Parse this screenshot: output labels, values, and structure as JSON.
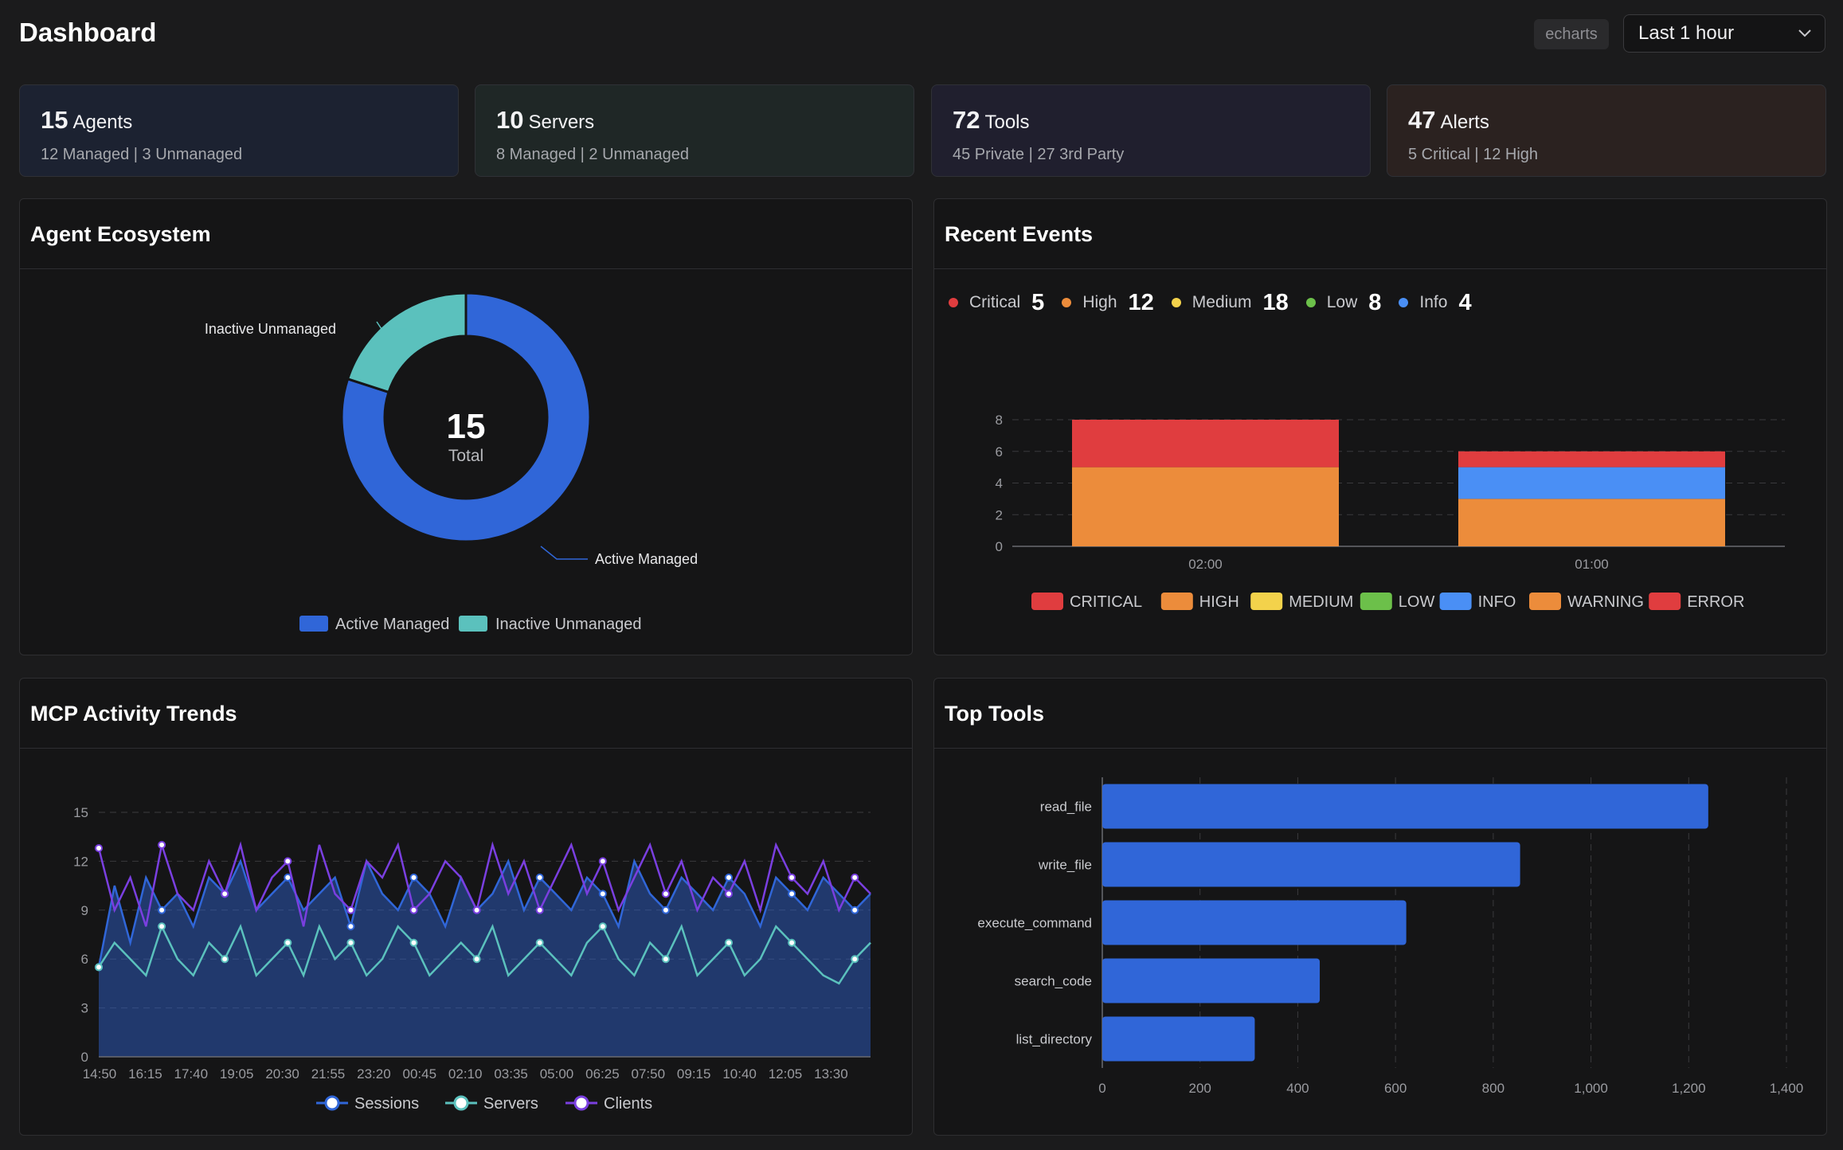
{
  "header": {
    "title": "Dashboard",
    "library_badge": "echarts",
    "time_range": "Last 1 hour",
    "icons": {
      "time_range_chevron": "chevron-down-icon"
    }
  },
  "stats": [
    {
      "number": "15",
      "label": "Agents",
      "sub": "12 Managed | 3 Unmanaged",
      "bg": "#1c2231"
    },
    {
      "number": "10",
      "label": "Servers",
      "sub": "8 Managed | 2 Unmanaged",
      "bg": "#1f2726"
    },
    {
      "number": "72",
      "label": "Tools",
      "sub": "45 Private | 27 3rd Party",
      "bg": "#201f2e"
    },
    {
      "number": "47",
      "label": "Alerts",
      "sub": "5 Critical | 12 High",
      "bg": "#2b2220"
    }
  ],
  "panels": {
    "agent_ecosystem": "Agent Ecosystem",
    "recent_events": "Recent Events",
    "mcp_activity": "MCP Activity Trends",
    "top_tools": "Top Tools"
  },
  "colors": {
    "blue": "#3066d8",
    "teal": "#5bc1bd",
    "purple": "#7a3fe0",
    "critical": "#e03d3f",
    "orange": "#ec8c3b",
    "yellow": "#f3d24b",
    "green": "#6cc04a",
    "info": "#4a8ff5"
  },
  "event_summary": [
    {
      "label": "Critical",
      "count": "5",
      "color": "#e03d3f"
    },
    {
      "label": "High",
      "count": "12",
      "color": "#ec8c3b"
    },
    {
      "label": "Medium",
      "count": "18",
      "color": "#f3d24b"
    },
    {
      "label": "Low",
      "count": "8",
      "color": "#6cc04a"
    },
    {
      "label": "Info",
      "count": "4",
      "color": "#4a8ff5"
    }
  ],
  "chart_data": [
    {
      "type": "pie",
      "variant": "donut",
      "center_value": "15",
      "center_label": "Total",
      "slices": [
        {
          "name": "Active Managed",
          "value": 12,
          "color": "#3066d8"
        },
        {
          "name": "Inactive Unmanaged",
          "value": 3,
          "color": "#5bc1bd"
        }
      ],
      "legend_position": "bottom"
    },
    {
      "type": "bar",
      "stacked": true,
      "categories": [
        "02:00",
        "01:00"
      ],
      "series": [
        {
          "name": "CRITICAL",
          "values": [
            0,
            0
          ],
          "color": "#e03d3f"
        },
        {
          "name": "HIGH",
          "values": [
            5,
            3
          ],
          "color": "#ec8c3b"
        },
        {
          "name": "MEDIUM",
          "values": [
            0,
            0
          ],
          "color": "#f3d24b"
        },
        {
          "name": "LOW",
          "values": [
            0,
            0
          ],
          "color": "#6cc04a"
        },
        {
          "name": "INFO",
          "values": [
            0,
            2
          ],
          "color": "#4a8ff5"
        },
        {
          "name": "WARNING",
          "values": [
            0,
            0
          ],
          "color": "#ec8c3b"
        },
        {
          "name": "ERROR",
          "values": [
            3,
            1
          ],
          "color": "#e03d3f"
        }
      ],
      "ylim": [
        0,
        8
      ],
      "yticks": [
        0,
        2,
        4,
        6,
        8
      ],
      "grid": true,
      "legend_position": "bottom"
    },
    {
      "type": "line",
      "x_labels": [
        "14:50",
        "16:15",
        "17:40",
        "19:05",
        "20:30",
        "21:55",
        "23:20",
        "00:45",
        "02:10",
        "03:35",
        "05:00",
        "06:25",
        "07:50",
        "09:15",
        "10:40",
        "12:05",
        "13:30"
      ],
      "ylim": [
        0,
        15
      ],
      "yticks": [
        0,
        3,
        6,
        9,
        12,
        15
      ],
      "series": [
        {
          "name": "Sessions",
          "color": "#3066d8",
          "area": true,
          "values": [
            5.5,
            10.5,
            7,
            11,
            9,
            10,
            8,
            11,
            10,
            12,
            9,
            10,
            11,
            9,
            10,
            11,
            8,
            12,
            10,
            9,
            11,
            10,
            8,
            11,
            9,
            10,
            12,
            9,
            11,
            10,
            9,
            11,
            10,
            8,
            12,
            10,
            9,
            11,
            10,
            9,
            11,
            10,
            8,
            11,
            10,
            9,
            11,
            10,
            9,
            10
          ]
        },
        {
          "name": "Servers",
          "color": "#5bc1bd",
          "values": [
            5.5,
            7,
            6,
            5,
            8,
            6,
            5,
            7,
            6,
            8,
            5,
            6,
            7,
            5,
            8,
            6,
            7,
            5,
            6,
            8,
            7,
            5,
            6,
            7,
            6,
            8,
            5,
            6,
            7,
            6,
            5,
            7,
            8,
            6,
            5,
            7,
            6,
            8,
            5,
            6,
            7,
            5,
            6,
            8,
            7,
            6,
            5,
            4.5,
            6,
            7
          ]
        },
        {
          "name": "Clients",
          "color": "#7a3fe0",
          "values": [
            12.8,
            9,
            11,
            8,
            13,
            10,
            9,
            12,
            10,
            13,
            9,
            11,
            12,
            8,
            13,
            10,
            9,
            12,
            11,
            13,
            9,
            10,
            12,
            11,
            9,
            13,
            10,
            12,
            9,
            11,
            13,
            10,
            12,
            9,
            11,
            13,
            10,
            12,
            9,
            11,
            10,
            12,
            9,
            13,
            11,
            10,
            12,
            9,
            11,
            10
          ]
        }
      ],
      "legend_position": "bottom"
    },
    {
      "type": "bar",
      "orientation": "horizontal",
      "categories": [
        "read_file",
        "write_file",
        "execute_command",
        "search_code",
        "list_directory"
      ],
      "values": [
        1240,
        855,
        622,
        445,
        312
      ],
      "xlim": [
        0,
        1400
      ],
      "xticks": [
        0,
        200,
        400,
        600,
        800,
        1000,
        1200,
        1400
      ],
      "xtick_labels": [
        "0",
        "200",
        "400",
        "600",
        "800",
        "1,000",
        "1,200",
        "1,400"
      ],
      "grid": true
    }
  ]
}
